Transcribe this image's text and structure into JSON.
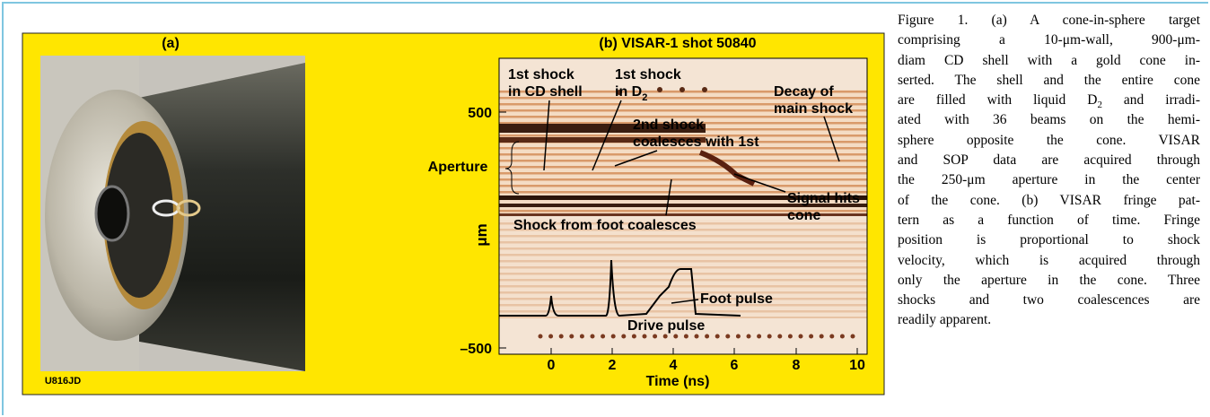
{
  "panel_a": {
    "label": "(a)",
    "code": "U816JD"
  },
  "panel_b": {
    "title": "(b) VISAR-1 shot 50840",
    "x_label": "Time (ns)",
    "y_label": "μm",
    "aperture": "Aperture",
    "x_ticks": [
      "0",
      "2",
      "4",
      "6",
      "8",
      "10"
    ],
    "y_ticks": [
      "500",
      "–500"
    ],
    "annotations": {
      "first_cd": [
        "1st shock",
        "in CD shell"
      ],
      "first_d2": [
        "1st shock",
        [
          "in D",
          {
            "sub": "2"
          }
        ]
      ],
      "second": [
        "2nd shock",
        "coalesces with 1st"
      ],
      "decay": [
        "Decay of",
        "main shock"
      ],
      "signal": [
        "Signal hits",
        "cone"
      ],
      "foot_coal": "Shock from foot coalesces",
      "foot": "Foot pulse",
      "drive": "Drive pulse"
    }
  },
  "caption": {
    "lines": [
      [
        "Figure 1. (a) A cone-in-sphere target"
      ],
      [
        "comprising a 10-μm-wall, 900-μm-"
      ],
      [
        "diam CD shell with a gold cone in-"
      ],
      [
        "serted. The shell and the entire cone"
      ],
      [
        "are filled with liquid D",
        {
          "sub": "2"
        },
        " and irradi-"
      ],
      [
        "ated with 36 beams on the hemi-"
      ],
      [
        "sphere opposite the cone. VISAR"
      ],
      [
        "and SOP data are acquired through"
      ],
      [
        "the 250-μm aperture in the center"
      ],
      [
        "of the cone. (b) VISAR fringe pat-"
      ],
      [
        "tern as a function of time. Fringe"
      ],
      [
        "position is proportional to shock"
      ],
      [
        "velocity, which is acquired through"
      ],
      [
        "only the aperture in the cone. Three"
      ],
      [
        "shocks and two coalescences are"
      ],
      [
        "readily apparent."
      ]
    ]
  }
}
